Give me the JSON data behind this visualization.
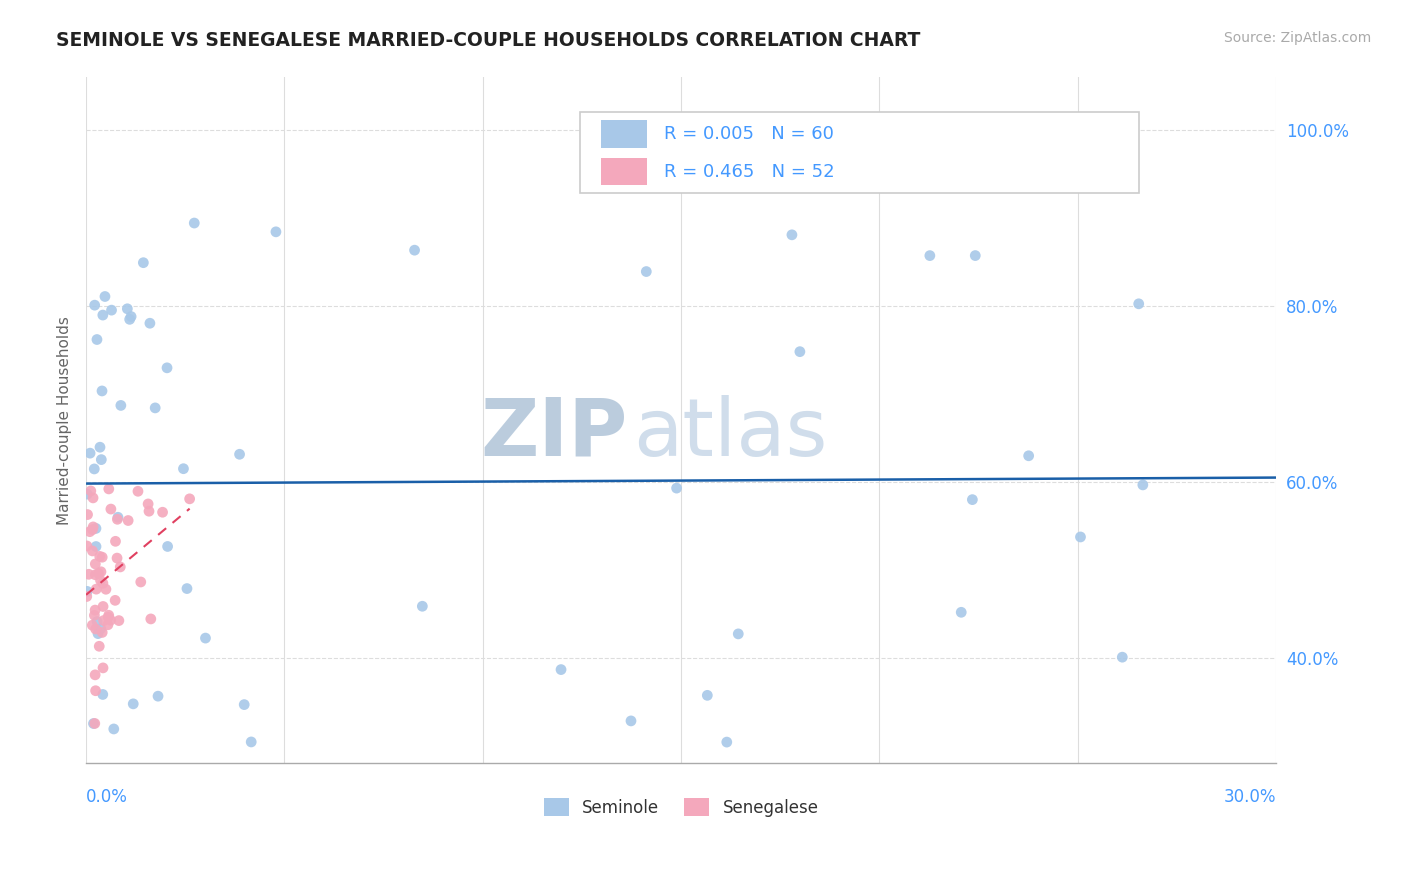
{
  "title": "SEMINOLE VS SENEGALESE MARRIED-COUPLE HOUSEHOLDS CORRELATION CHART",
  "source": "Source: ZipAtlas.com",
  "ylabel": "Married-couple Households",
  "seminole_R": "0.005",
  "seminole_N": "60",
  "senegalese_R": "0.465",
  "senegalese_N": "52",
  "seminole_color": "#a8c8e8",
  "senegalese_color": "#f4a8bc",
  "seminole_line_color": "#1a5fa8",
  "senegalese_line_color": "#e04060",
  "watermark_zip": "ZIP",
  "watermark_atlas": "atlas",
  "watermark_color": "#c8d8e8",
  "xlim": [
    0.0,
    0.3
  ],
  "ylim": [
    0.28,
    1.06
  ],
  "yticks": [
    0.4,
    0.6,
    0.8,
    1.0
  ],
  "ytick_labels": [
    "40.0%",
    "60.0%",
    "80.0%",
    "100.0%"
  ],
  "tick_color": "#4499ff",
  "bg_color": "#ffffff",
  "grid_color": "#dddddd",
  "title_color": "#222222",
  "source_color": "#aaaaaa"
}
